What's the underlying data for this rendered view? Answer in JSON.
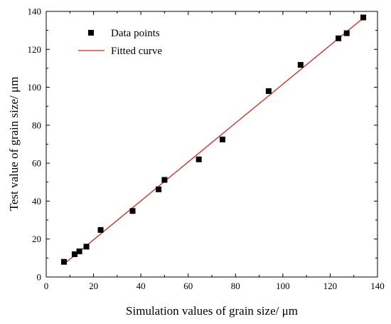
{
  "chart_data": {
    "type": "scatter",
    "title": "",
    "xlabel": "Simulation values of grain size/ μm",
    "ylabel": "Test value of grain size/ μm",
    "xlim": [
      0,
      140
    ],
    "ylim": [
      0,
      140
    ],
    "x_ticks": [
      "0",
      "20",
      "40",
      "60",
      "80",
      "100",
      "120",
      "140"
    ],
    "y_ticks": [
      "0",
      "20",
      "40",
      "60",
      "80",
      "100",
      "120",
      "140"
    ],
    "grid": false,
    "legend_position": "top-left",
    "series": [
      {
        "name": "Data points",
        "kind": "scatter",
        "marker": "square",
        "color": "#000000",
        "points": [
          [
            7.5,
            8
          ],
          [
            12,
            12
          ],
          [
            14,
            13.5
          ],
          [
            17,
            16
          ],
          [
            23,
            24.8
          ],
          [
            36.5,
            34.8
          ],
          [
            47.5,
            46.2
          ],
          [
            50,
            51.2
          ],
          [
            64.5,
            62
          ],
          [
            74.5,
            72.5
          ],
          [
            94,
            98
          ],
          [
            107.5,
            111.8
          ],
          [
            123.5,
            125.8
          ],
          [
            127,
            128.5
          ],
          [
            134,
            136.8
          ]
        ]
      },
      {
        "name": "Fitted curve",
        "kind": "line",
        "color": "#e0201b",
        "points": [
          [
            7.5,
            6.8
          ],
          [
            134,
            136.5
          ]
        ]
      }
    ]
  }
}
